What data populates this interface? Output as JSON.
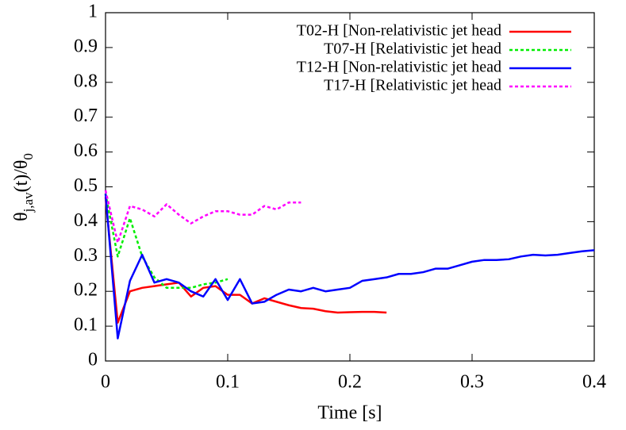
{
  "chart_data": {
    "type": "line",
    "xlabel": "Time [s]",
    "ylabel": [
      {
        "text": "θ"
      },
      {
        "text": "j,av",
        "sub": true
      },
      {
        "text": "(t)/θ"
      },
      {
        "text": "0",
        "sub": true
      }
    ],
    "xlim": [
      0,
      0.4
    ],
    "ylim": [
      0,
      1
    ],
    "xticks": [
      0,
      0.1,
      0.2,
      0.3,
      0.4
    ],
    "yticks": [
      0,
      0.1,
      0.2,
      0.3,
      0.4,
      0.5,
      0.6,
      0.7,
      0.8,
      0.9,
      1
    ],
    "grid": false,
    "legend": "top-right",
    "series": [
      {
        "name": "T02-H [Non-relativistic jet head",
        "color": "#ff0000",
        "dash": false,
        "x": [
          0,
          0.01,
          0.02,
          0.03,
          0.04,
          0.05,
          0.06,
          0.07,
          0.08,
          0.09,
          0.1,
          0.11,
          0.12,
          0.13,
          0.14,
          0.15,
          0.16,
          0.17,
          0.18,
          0.19,
          0.2,
          0.21,
          0.22,
          0.23
        ],
        "values": [
          0.47,
          0.11,
          0.2,
          0.21,
          0.215,
          0.22,
          0.225,
          0.185,
          0.21,
          0.215,
          0.19,
          0.19,
          0.165,
          0.18,
          0.17,
          0.16,
          0.152,
          0.15,
          0.143,
          0.139,
          0.14,
          0.141,
          0.141,
          0.139
        ]
      },
      {
        "name": "T07-H [Relativistic jet head",
        "color": "#00ee00",
        "dash": true,
        "x": [
          0,
          0.01,
          0.02,
          0.03,
          0.04,
          0.05,
          0.06,
          0.07,
          0.08,
          0.09,
          0.1
        ],
        "values": [
          0.48,
          0.3,
          0.41,
          0.3,
          0.24,
          0.21,
          0.21,
          0.21,
          0.22,
          0.225,
          0.235
        ]
      },
      {
        "name": "T12-H [Non-relativistic jet head",
        "color": "#0000ff",
        "dash": false,
        "x": [
          0,
          0.01,
          0.02,
          0.03,
          0.04,
          0.05,
          0.06,
          0.07,
          0.08,
          0.09,
          0.1,
          0.11,
          0.12,
          0.13,
          0.14,
          0.15,
          0.16,
          0.17,
          0.18,
          0.19,
          0.2,
          0.21,
          0.22,
          0.23,
          0.24,
          0.25,
          0.26,
          0.27,
          0.28,
          0.29,
          0.3,
          0.31,
          0.32,
          0.33,
          0.34,
          0.35,
          0.36,
          0.37,
          0.38,
          0.39,
          0.4
        ],
        "values": [
          0.48,
          0.065,
          0.23,
          0.305,
          0.225,
          0.235,
          0.225,
          0.2,
          0.185,
          0.235,
          0.175,
          0.235,
          0.165,
          0.17,
          0.19,
          0.205,
          0.2,
          0.21,
          0.2,
          0.205,
          0.21,
          0.23,
          0.235,
          0.24,
          0.25,
          0.25,
          0.255,
          0.265,
          0.265,
          0.275,
          0.285,
          0.29,
          0.29,
          0.292,
          0.3,
          0.305,
          0.303,
          0.305,
          0.31,
          0.315,
          0.318
        ]
      },
      {
        "name": "T17-H [Relativistic jet head",
        "color": "#ff00ff",
        "dash": true,
        "x": [
          0,
          0.01,
          0.02,
          0.03,
          0.04,
          0.05,
          0.06,
          0.07,
          0.08,
          0.09,
          0.1,
          0.11,
          0.12,
          0.13,
          0.14,
          0.15,
          0.16
        ],
        "values": [
          0.49,
          0.34,
          0.445,
          0.435,
          0.415,
          0.45,
          0.42,
          0.395,
          0.415,
          0.43,
          0.43,
          0.42,
          0.42,
          0.445,
          0.435,
          0.455,
          0.455
        ]
      }
    ]
  }
}
